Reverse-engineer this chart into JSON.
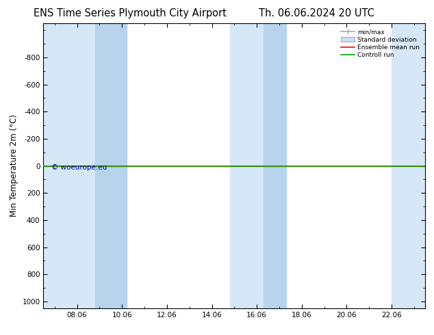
{
  "title_left": "ENS Time Series Plymouth City Airport",
  "title_right": "Th. 06.06.2024 20 UTC",
  "ylabel": "Min Temperature 2m (°C)",
  "ylim_bottom": 1050,
  "ylim_top": -1050,
  "yticks": [
    -800,
    -600,
    -400,
    -200,
    0,
    200,
    400,
    600,
    800,
    1000
  ],
  "xlim_left": 6.5,
  "xlim_right": 23.5,
  "xtick_labels": [
    "08.06",
    "10.06",
    "12.06",
    "14.06",
    "16.06",
    "18.06",
    "20.06",
    "22.06"
  ],
  "xtick_positions": [
    8,
    10,
    12,
    14,
    16,
    18,
    20,
    22
  ],
  "shaded_regions": [
    [
      6.5,
      8.8
    ],
    [
      8.8,
      10.2
    ],
    [
      14.8,
      16.3
    ],
    [
      16.3,
      17.3
    ],
    [
      22.0,
      23.5
    ]
  ],
  "shaded_colors_light": "#d6e8f7",
  "shaded_colors_dark": "#b8d4ed",
  "line_y": 0,
  "ensemble_mean_color": "#ff0000",
  "control_run_color": "#00aa00",
  "watermark": "© woeurope.eu",
  "watermark_color": "#0000cc",
  "bg_color": "#ffffff",
  "legend_minmax_color": "#aaaaaa",
  "legend_stddev_color": "#c8dff5",
  "title_fontsize": 10.5,
  "label_fontsize": 8.5,
  "tick_fontsize": 7.5
}
